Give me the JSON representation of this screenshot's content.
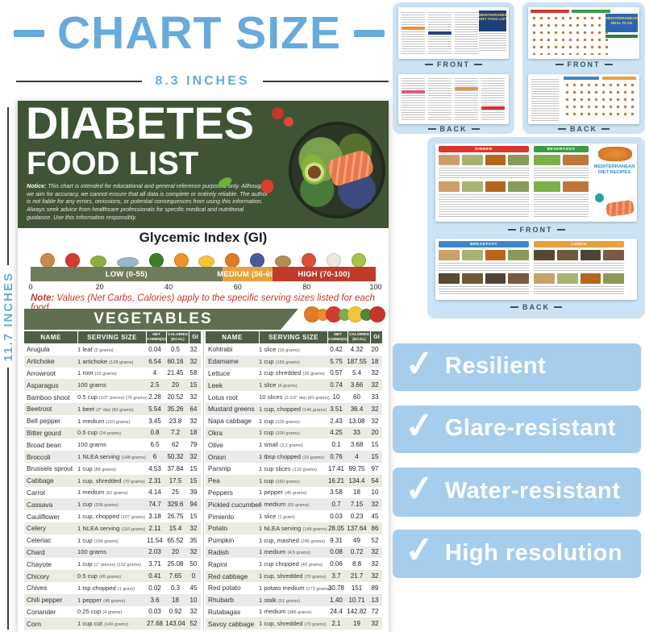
{
  "header": {
    "title": "CHART SIZE",
    "width_label": "8.3 INCHES",
    "height_label": "11.7 INCHES",
    "accent_color": "#68aadb"
  },
  "poster": {
    "title_line1": "DIABETES",
    "title_line2": "FOOD LIST",
    "notice_label": "Notice:",
    "notice_text": "This chart is intended for educational and general reference purposes only. Although we aim for accuracy, we cannot ensure that all data is complete or entirely reliable. The author is not liable for any errors, omissions, or potential consequences from using this information. Always seek advice from healthcare professionals for specific medical and nutritional guidance. Use this information responsibly.",
    "header_bg_color": "#3e5435",
    "gi": {
      "title": "Glycemic Index (GI)",
      "icons": [
        {
          "name": "almonds-icon",
          "color": "#c98a4b",
          "shape": "round"
        },
        {
          "name": "apple-icon",
          "color": "#d23b2f",
          "shape": "round"
        },
        {
          "name": "avocado-icon",
          "color": "#8fae3e",
          "shape": "oval"
        },
        {
          "name": "tuna-fish-icon",
          "color": "#9db6c9",
          "shape": "fish"
        },
        {
          "name": "broccoli-icon",
          "color": "#3f7d2c",
          "shape": "round"
        },
        {
          "name": "oranges-icon",
          "color": "#f0922b",
          "shape": "round"
        },
        {
          "name": "banana-icon",
          "color": "#f2c63c",
          "shape": "oval"
        },
        {
          "name": "pumpkin-icon",
          "color": "#e07b27",
          "shape": "round"
        },
        {
          "name": "blueberries-icon",
          "color": "#4a5a9e",
          "shape": "round"
        },
        {
          "name": "potato-icon",
          "color": "#b58b58",
          "shape": "oval"
        },
        {
          "name": "watermelon-icon",
          "color": "#d94f3a",
          "shape": "round"
        },
        {
          "name": "rice-icon",
          "color": "#efe9dd",
          "shape": "round"
        },
        {
          "name": "guava-icon",
          "color": "#a8c24a",
          "shape": "round"
        }
      ],
      "bands": [
        {
          "label": "LOW (0-55)",
          "color": "#6f7c5a",
          "pct": 55.5
        },
        {
          "label": "MEDIUM (56-69)",
          "color": "#e5a33c",
          "pct": 14.5
        },
        {
          "label": "HIGH (70-100)",
          "color": "#c03a2c",
          "pct": 30
        }
      ],
      "ticks": [
        "0",
        "20",
        "40",
        "60",
        "80",
        "100"
      ]
    },
    "note_label": "Note:",
    "note_text": "Values (Net Carbs, Calories) apply to the specific serving sizes listed for each food",
    "section_title": "VEGETABLES",
    "veg_icons": [
      {
        "name": "pumpkin-icon",
        "color": "#e07b27"
      },
      {
        "name": "carrot-icon",
        "color": "#ed8b33"
      },
      {
        "name": "tomato-icon",
        "color": "#d23b2f"
      },
      {
        "name": "lettuce-icon",
        "color": "#7fae4a"
      },
      {
        "name": "corn-icon",
        "color": "#f2c63c"
      },
      {
        "name": "cucumber-icon",
        "color": "#4e8a38"
      },
      {
        "name": "bell-pepper-icon",
        "color": "#c8362b"
      }
    ],
    "header_decor": [
      {
        "name": "cherry-tomato-icon",
        "color": "#c8362b"
      },
      {
        "name": "cherry-tomato-icon",
        "color": "#d8493a"
      },
      {
        "name": "strawberry-icon",
        "color": "#d9412f"
      },
      {
        "name": "basil-leaf-icon",
        "color": "#6fae3f"
      }
    ],
    "table_headers": [
      "NAME",
      "SERVING SIZE",
      "NET CARBS(G)",
      "CALORIES (KCAL)",
      "GI"
    ],
    "table_left": [
      [
        "Arugula",
        "1 leaf (2 grams)",
        "0.04",
        "0.5",
        "32"
      ],
      [
        "Artichoke",
        "1 artichoke (128 grams)",
        "6.54",
        "60.16",
        "32"
      ],
      [
        "Arrowroot",
        "1 root (33 grams)",
        "4",
        "21.45",
        "58"
      ],
      [
        "Asparagus",
        "100 grams",
        "2.5",
        "20",
        "15"
      ],
      [
        "Bamboo shoot",
        "0.5 cup (1/2\" pieces) (76 grams)",
        "2.28",
        "20.52",
        "32"
      ],
      [
        "Beetroot",
        "1 beet (2\" dia) (82 grams)",
        "5.54",
        "35.26",
        "64"
      ],
      [
        "Bell pepper",
        "1 medium (119 grams)",
        "3.45",
        "23.8",
        "32"
      ],
      [
        "Bitter gourd",
        "0.5 cup (24 grams)",
        "0.8",
        "7.2",
        "18"
      ],
      [
        "Broad bean",
        "100 grams",
        "6.5",
        "62",
        "79"
      ],
      [
        "Broccoli",
        "1 NLEA serving (148 grams)",
        "6",
        "50.32",
        "32"
      ],
      [
        "Brussels sprout",
        "1 cup (88 grams)",
        "4.53",
        "37.84",
        "15"
      ],
      [
        "Cabbage",
        "1 cup, shredded (70 grams)",
        "2.31",
        "17.5",
        "15"
      ],
      [
        "Carrot",
        "1 medium (61 grams)",
        "4.14",
        "25",
        "39"
      ],
      [
        "Cassava",
        "1 cup (206 grams)",
        "74.7",
        "329.6",
        "94"
      ],
      [
        "Cauliflower",
        "1 cup, chopped (107 grams)",
        "3.18",
        "26.75",
        "15"
      ],
      [
        "Celery",
        "1 NLEA serving (110 grams)",
        "2.11",
        "15.4",
        "32"
      ],
      [
        "Celeriac",
        "1 cup (156 grams)",
        "11.54",
        "65.52",
        "35"
      ],
      [
        "Chard",
        "100 grams",
        "2.03",
        "20",
        "32"
      ],
      [
        "Chayote",
        "1 cup (1\" pieces) (132 grams)",
        "3.71",
        "25.08",
        "50"
      ],
      [
        "Chicory",
        "0.5 cup (45 grams)",
        "0.41",
        "7.65",
        "0"
      ],
      [
        "Chives",
        "1 tsp chopped (1 gram)",
        "0.02",
        "0.3",
        "45"
      ],
      [
        "Chili pepper",
        "1 pepper (45 grams)",
        "3.6",
        "18",
        "10"
      ],
      [
        "Coriander",
        "0.25 cup (4 grams)",
        "0.03",
        "0.92",
        "32"
      ],
      [
        "Corn",
        "1 cup cut (149 grams)",
        "27.68",
        "143.04",
        "52"
      ]
    ],
    "table_right": [
      [
        "Kohlrabi",
        "1 slice (16 grams)",
        "0.42",
        "4.32",
        "20"
      ],
      [
        "Edamame",
        "1 cup (155 grams)",
        "5.75",
        "187.55",
        "18"
      ],
      [
        "Lettuce",
        "1 cup shredded (36 grams)",
        "0.57",
        "5.4",
        "32"
      ],
      [
        "Leek",
        "1 slice (6 grams)",
        "0.74",
        "3.66",
        "32"
      ],
      [
        "Lotus root",
        "10 slices (2-1/2\" dia) (81 grams)",
        "10",
        "60",
        "33"
      ],
      [
        "Mustard greens",
        "1 cup, chopped (140 grams)",
        "3.51",
        "36.4",
        "32"
      ],
      [
        "Napa cabbage",
        "1 cup (109 grams)",
        "2.43",
        "13.08",
        "32"
      ],
      [
        "Okra",
        "1 cup (100 grams)",
        "4.25",
        "33",
        "20"
      ],
      [
        "Olive",
        "1 small (3.2 grams)",
        "0.1",
        "3.68",
        "15"
      ],
      [
        "Onion",
        "1 tbsp chopped (10 grams)",
        "0.76",
        "4",
        "15"
      ],
      [
        "Parsnip",
        "1 cup slices (133 grams)",
        "17.41",
        "99.75",
        "97"
      ],
      [
        "Pea",
        "1 cup (160 grams)",
        "16.21",
        "134.4",
        "54"
      ],
      [
        "Peppers",
        "1 pepper (45 grams)",
        "3.58",
        "18",
        "10"
      ],
      [
        "Pickled cucumber",
        "1 medium (65 grams)",
        "0.7",
        "7.15",
        "32"
      ],
      [
        "Pimiento",
        "1 slice (1 gram)",
        "0.03",
        "0.23",
        "45"
      ],
      [
        "Potato",
        "1 NLEA serving (148 grams)",
        "28.05",
        "137.64",
        "86"
      ],
      [
        "Pumpkin",
        "1 cup, mashed (245 grams)",
        "9.31",
        "49",
        "52"
      ],
      [
        "Radish",
        "1 medium (4.5 grams)",
        "0.08",
        "0.72",
        "32"
      ],
      [
        "Rapini",
        "1 cup chopped (40 grams)",
        "0.06",
        "8.8",
        "32"
      ],
      [
        "Red cabbage",
        "1 cup, shredded (70 grams)",
        "3.7",
        "21.7",
        "32"
      ],
      [
        "Red potato",
        "1 potato medium (173 grams)",
        "30.78",
        "151",
        "89"
      ],
      [
        "Rhubarb",
        "1 stalk (51 grams)",
        "1.40",
        "10.71",
        "13"
      ],
      [
        "Rutabagas",
        "1 medium (386 grams)",
        "24.4",
        "142.82",
        "72"
      ],
      [
        "Savoy cabbage",
        "1 cup, shredded (70 grams)",
        "2.1",
        "19",
        "32"
      ]
    ]
  },
  "thumbnails": {
    "front_label": "FRONT",
    "back_label": "BACK",
    "cards": [
      {
        "title": "MEDITERRANEAN DIET FOOD LIST"
      },
      {
        "title": "MEDITERRANEAN MEAL PLAN"
      },
      {
        "title": "MEDITERRANEAN DIET RECIPES",
        "sections_front": [
          "DINNER",
          "BEVERAGES"
        ],
        "sections_back": [
          "BREAKFAST",
          "LUNCH"
        ]
      }
    ]
  },
  "features": [
    "Resilient",
    "Glare-resistant",
    "Water-resistant",
    "High resolution"
  ],
  "icons": {
    "check": "✓"
  },
  "colors": {
    "accent_blue": "#68aadb",
    "card_blue": "#cbe3f5",
    "badge_blue": "#a6cdeb",
    "poster_green": "#3e5435",
    "table_header_green": "#4e5d44",
    "gi_low": "#6f7c5a",
    "gi_medium": "#e5a33c",
    "gi_high": "#c03a2c",
    "note_red": "#c0392b"
  }
}
